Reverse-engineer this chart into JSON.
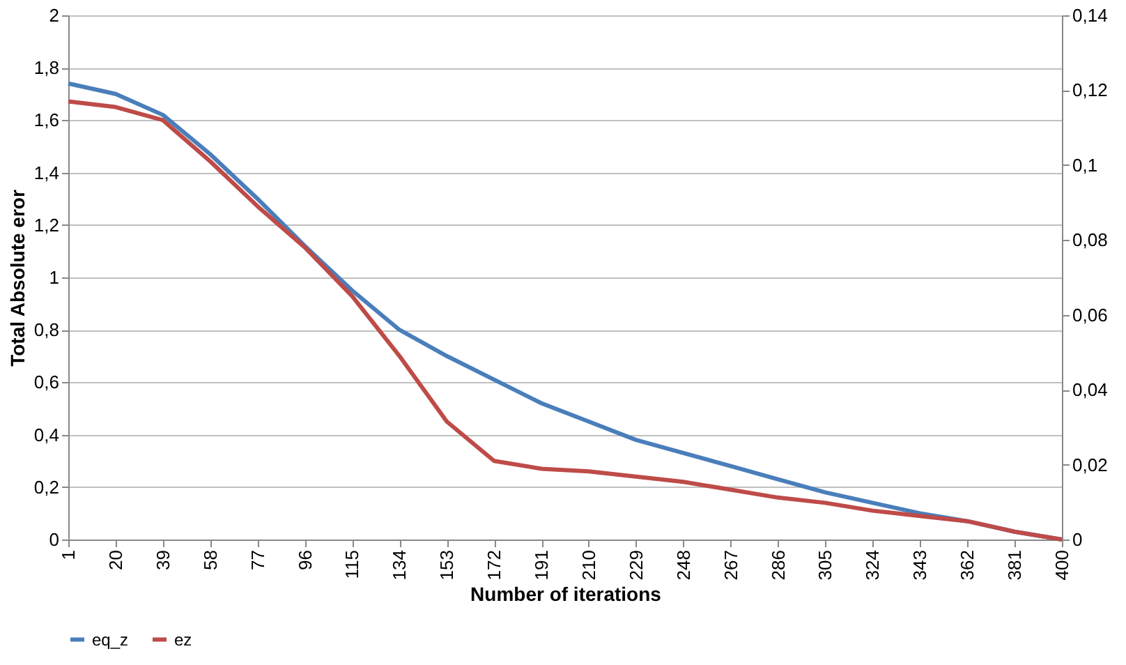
{
  "chart_data": {
    "type": "line",
    "xlabel": "Number of iterations",
    "ylabel": "Total Absolute eror",
    "x": [
      1,
      20,
      39,
      58,
      77,
      96,
      115,
      134,
      153,
      172,
      191,
      210,
      229,
      248,
      267,
      286,
      305,
      324,
      343,
      362,
      381,
      400
    ],
    "series": [
      {
        "name": "eq_z",
        "color": "#4a7ebb",
        "values": [
          1.74,
          1.7,
          1.62,
          1.47,
          1.3,
          1.12,
          0.95,
          0.8,
          0.7,
          0.61,
          0.52,
          0.45,
          0.38,
          0.33,
          0.28,
          0.23,
          0.18,
          0.14,
          0.1,
          0.07,
          0.03,
          0
        ]
      },
      {
        "name": "ez",
        "color": "#be4b48",
        "axis": "y2",
        "values": [
          0.117,
          0.1155,
          0.112,
          0.101,
          0.089,
          0.078,
          0.065,
          0.049,
          0.0315,
          0.021,
          0.0189,
          0.0182,
          0.0168,
          0.0154,
          0.0133,
          0.0112,
          0.0098,
          0.0077,
          0.0063,
          0.0049,
          0.0021,
          0
        ]
      }
    ],
    "xlim": [
      1,
      400
    ],
    "xticks": [
      1,
      20,
      39,
      58,
      77,
      96,
      115,
      134,
      153,
      172,
      191,
      210,
      229,
      248,
      267,
      286,
      305,
      324,
      343,
      362,
      381,
      400
    ],
    "ylim": [
      0,
      2
    ],
    "yticks": [
      0,
      {
        "value": 0.2,
        "label": "0,2"
      },
      {
        "value": 0.4,
        "label": "0,4"
      },
      {
        "value": 0.6,
        "label": "0,6"
      },
      {
        "value": 0.8,
        "label": "0,8"
      },
      1,
      {
        "value": 1.2,
        "label": "1,2"
      },
      {
        "value": 1.4,
        "label": "1,4"
      },
      {
        "value": 1.6,
        "label": "1,6"
      },
      {
        "value": 1.8,
        "label": "1,8"
      },
      2
    ],
    "y2lim": [
      0,
      0.14
    ],
    "y2ticks": [
      0,
      {
        "value": 0.02,
        "label": "0,02"
      },
      {
        "value": 0.04,
        "label": "0,04"
      },
      {
        "value": 0.06,
        "label": "0,06"
      },
      {
        "value": 0.08,
        "label": "0,08"
      },
      {
        "value": 0.1,
        "label": "0,1"
      },
      {
        "value": 0.12,
        "label": "0,12"
      },
      {
        "value": 0.14,
        "label": "0,14"
      }
    ],
    "grid": "y",
    "legend": "bottom",
    "marker": "none",
    "line_style": "solid"
  }
}
